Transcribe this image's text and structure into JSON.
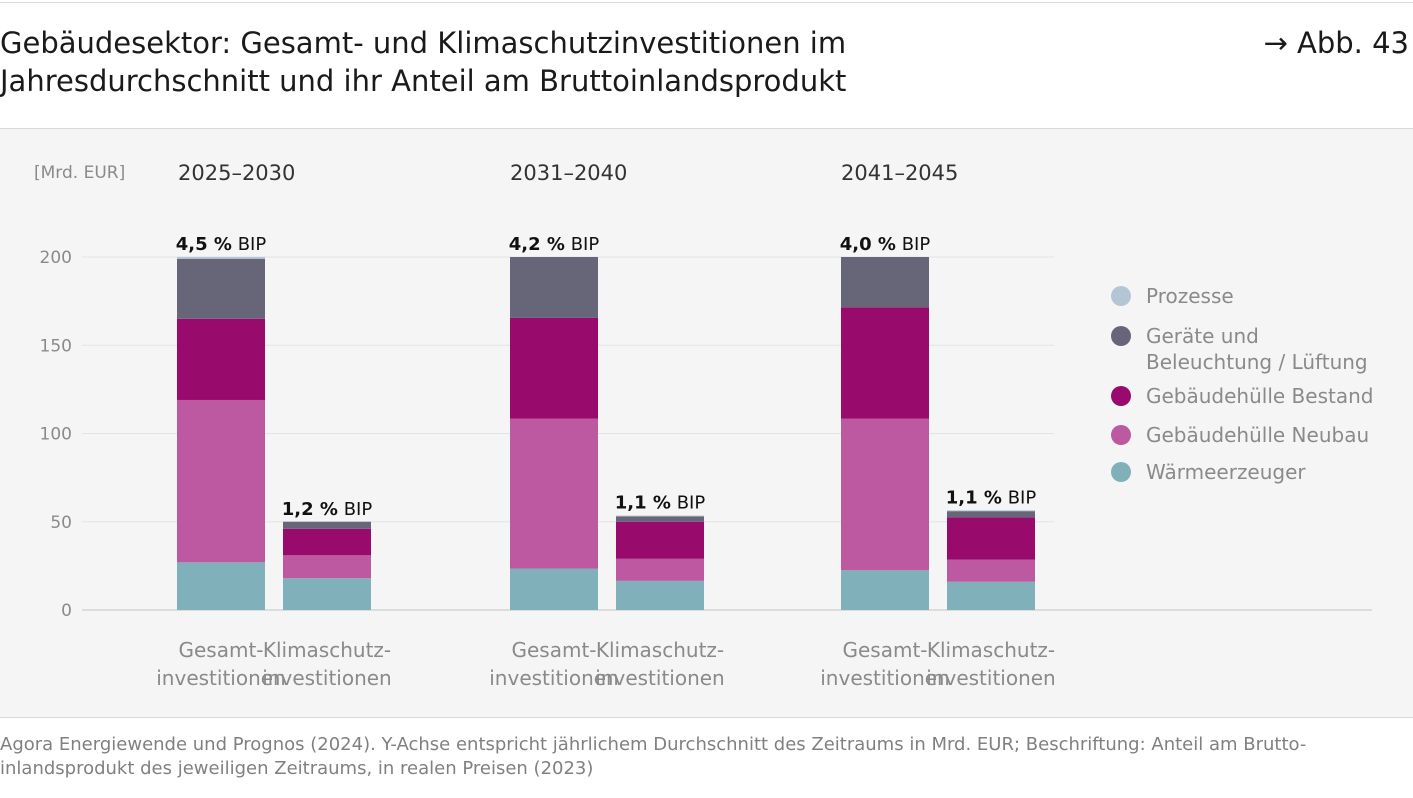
{
  "header": {
    "title_line1": "Gebäudesektor: Gesamt- und Klimaschutzinvestitionen im",
    "title_line2": "Jahresdurchschnitt und ihr Anteil am Bruttoinlandsprodukt",
    "figure_ref": "→ Abb. 43"
  },
  "source": {
    "line1": "Agora Energiewende und Prognos (2024). Y-Achse entspricht jährlichem Durchschnitt des Zeitraums in Mrd. EUR; Beschriftung: Anteil am Brutto-",
    "line2": "inlandsprodukt des jeweiligen Zeitraums, in realen Preisen (2023)"
  },
  "colors": {
    "Prozesse": "#b4c6d6",
    "Geräte und Beleuchtung / Lüftung": "#676578",
    "Gebäudehülle Bestand": "#980a6c",
    "Gebäudehülle Neubau": "#bd59a0",
    "Wärmeerzeuger": "#80b1bb",
    "grid": "#e3e3e3",
    "axis": "#c4c4c4",
    "muted_text": "#8a8a8a"
  },
  "chart_data": {
    "type": "bar",
    "stacked": true,
    "unit_label": "[Mrd. EUR]",
    "ylim": [
      0,
      200
    ],
    "yticks": [
      0,
      50,
      100,
      150,
      200
    ],
    "grid": true,
    "legend_position": "right",
    "groups": [
      "2025–2030",
      "2031–2040",
      "2041–2045"
    ],
    "bar_labels": [
      [
        "Gesamt-",
        "investitionen"
      ],
      [
        "Klimaschutz-",
        "investitionen"
      ]
    ],
    "series_order": [
      "Wärmeerzeuger",
      "Gebäudehülle Neubau",
      "Gebäudehülle Bestand",
      "Geräte und Beleuchtung / Lüftung",
      "Prozesse"
    ],
    "legend": [
      {
        "name": "Prozesse",
        "lines": [
          "Prozesse"
        ]
      },
      {
        "name": "Geräte und Beleuchtung / Lüftung",
        "lines": [
          "Geräte und",
          "Beleuchtung / Lüftung"
        ]
      },
      {
        "name": "Gebäudehülle Bestand",
        "lines": [
          "Gebäudehülle Bestand"
        ]
      },
      {
        "name": "Gebäudehülle Neubau",
        "lines": [
          "Gebäudehülle Neubau"
        ]
      },
      {
        "name": "Wärmeerzeuger",
        "lines": [
          "Wärmeerzeuger"
        ]
      }
    ],
    "bars": [
      {
        "group": "2025–2030",
        "bar": "Gesamtinvestitionen",
        "label_bold": "4,5 %",
        "label_suffix": " BIP",
        "values": {
          "Wärmeerzeuger": 27,
          "Gebäudehülle Neubau": 92,
          "Gebäudehülle Bestand": 46,
          "Geräte und Beleuchtung / Lüftung": 34,
          "Prozesse": 1
        }
      },
      {
        "group": "2025–2030",
        "bar": "Klimaschutzinvestitionen",
        "label_bold": "1,2 %",
        "label_suffix": " BIP",
        "values": {
          "Wärmeerzeuger": 18,
          "Gebäudehülle Neubau": 13,
          "Gebäudehülle Bestand": 15,
          "Geräte und Beleuchtung / Lüftung": 4,
          "Prozesse": 0
        }
      },
      {
        "group": "2031–2040",
        "bar": "Gesamtinvestitionen",
        "label_bold": "4,2 %",
        "label_suffix": " BIP",
        "values": {
          "Wärmeerzeuger": 23.5,
          "Gebäudehülle Neubau": 85,
          "Gebäudehülle Bestand": 57,
          "Geräte und Beleuchtung / Lüftung": 34.5,
          "Prozesse": 0
        }
      },
      {
        "group": "2031–2040",
        "bar": "Klimaschutzinvestitionen",
        "label_bold": "1,1 %",
        "label_suffix": " BIP",
        "values": {
          "Wärmeerzeuger": 16.5,
          "Gebäudehülle Neubau": 12.5,
          "Gebäudehülle Bestand": 21,
          "Geräte und Beleuchtung / Lüftung": 3,
          "Prozesse": 0.5
        }
      },
      {
        "group": "2041–2045",
        "bar": "Gesamtinvestitionen",
        "label_bold": "4,0 %",
        "label_suffix": " BIP",
        "values": {
          "Wärmeerzeuger": 22.5,
          "Gebäudehülle Neubau": 86,
          "Gebäudehülle Bestand": 63,
          "Geräte und Beleuchtung / Lüftung": 28.5,
          "Prozesse": 0
        }
      },
      {
        "group": "2041–2045",
        "bar": "Klimaschutzinvestitionen",
        "label_bold": "1,1 %",
        "label_suffix": " BIP",
        "values": {
          "Wärmeerzeuger": 16,
          "Gebäudehülle Neubau": 12.5,
          "Gebäudehülle Bestand": 24,
          "Geräte und Beleuchtung / Lüftung": 3.5,
          "Prozesse": 0.5
        }
      }
    ]
  }
}
